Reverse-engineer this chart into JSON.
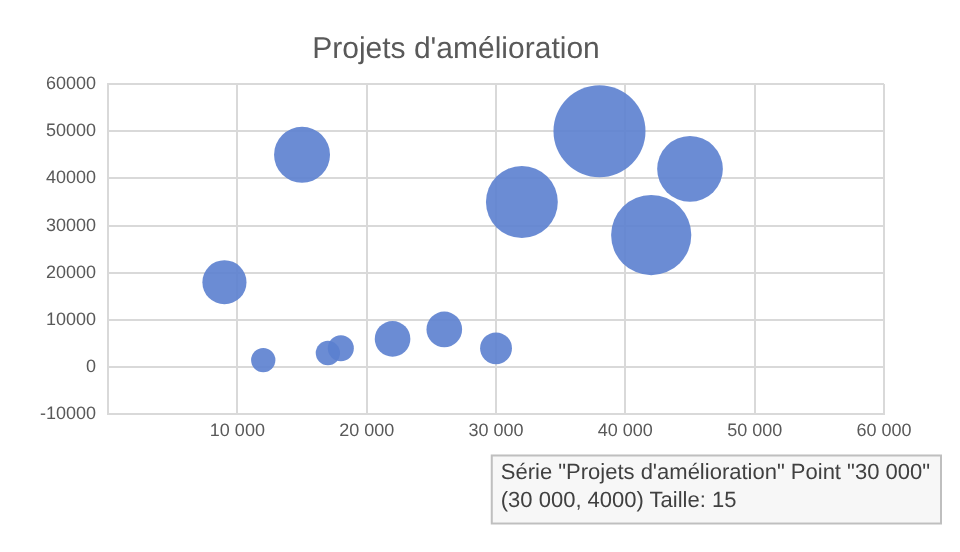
{
  "chart_data": {
    "type": "bubble",
    "title": "Projets d'amélioration",
    "x": [
      9000,
      12000,
      17000,
      18000,
      22000,
      26000,
      30000,
      15000,
      32000,
      38000,
      45000,
      42000
    ],
    "series": [
      {
        "color": "#5b80cf",
        "values": [
          18000,
          1500,
          3000,
          4000,
          6000,
          8000,
          4000,
          45000,
          35000,
          50000,
          42000,
          28000
        ],
        "sizes": [
          0.23,
          0.07,
          0.07,
          0.08,
          0.15,
          0.15,
          0.12,
          0.37,
          0.61,
          1,
          0.51,
          0.76
        ]
      }
    ],
    "xlim": [
      0,
      60000
    ],
    "xticks": [
      {
        "value": 10000,
        "label": "10 000"
      },
      {
        "value": 20000,
        "label": "20 000"
      },
      {
        "value": 30000,
        "label": "30 000"
      },
      {
        "value": 40000,
        "label": "40 000"
      },
      {
        "value": 50000,
        "label": "50 000"
      },
      {
        "value": 60000,
        "label": "60 000"
      }
    ],
    "ylim": [
      -10000,
      60000
    ],
    "yticks": [
      -10000,
      0,
      10000,
      20000,
      30000,
      40000,
      50000,
      60000
    ],
    "grid": true,
    "legend": false,
    "annotations": [
      "Série \"Projets d'amélioration\" Point \"30 000\"\n(30 000, 4000) Taille: 15"
    ]
  }
}
